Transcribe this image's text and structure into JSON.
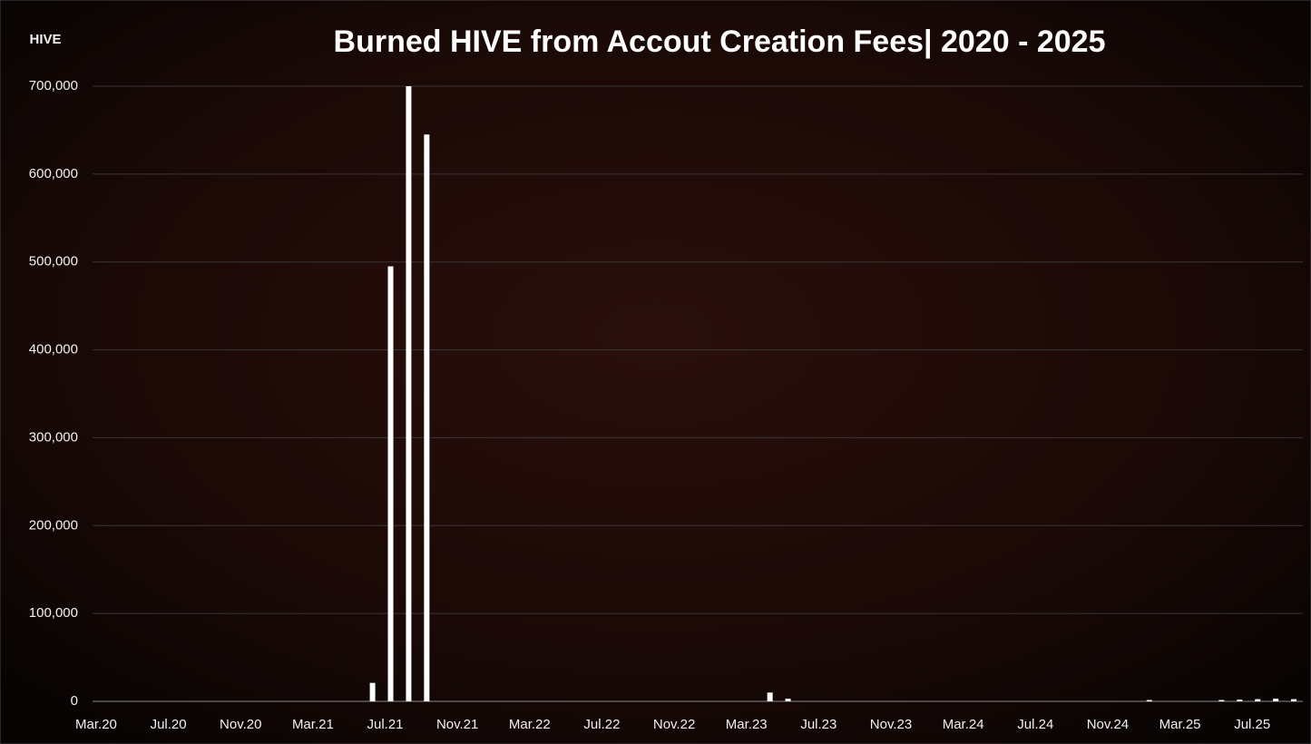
{
  "chart_data": {
    "type": "bar",
    "title": "Burned HIVE from Accout Creation Fees|  2020 - 2025",
    "y_label": "HIVE",
    "categories": [
      "Mar.20",
      null,
      null,
      null,
      "Jul.20",
      null,
      null,
      null,
      "Nov.20",
      null,
      null,
      null,
      "Mar.21",
      null,
      null,
      null,
      "Jul.21",
      null,
      null,
      null,
      "Nov.21",
      null,
      null,
      null,
      "Mar.22",
      null,
      null,
      null,
      "Jul.22",
      null,
      null,
      null,
      "Nov.22",
      null,
      null,
      null,
      "Mar.23",
      null,
      null,
      null,
      "Jul.23",
      null,
      null,
      null,
      "Nov.23",
      null,
      null,
      null,
      "Mar.24",
      null,
      null,
      null,
      "Jul.24",
      null,
      null,
      null,
      "Nov.24",
      null,
      null,
      null,
      "Mar.25",
      null,
      null,
      null,
      "Jul.25",
      null,
      null
    ],
    "values": [
      0,
      0,
      0,
      0,
      0,
      0,
      0,
      0,
      0,
      0,
      0,
      0,
      0,
      0,
      0,
      21000,
      495000,
      700000,
      645000,
      0,
      0,
      0,
      0,
      0,
      0,
      0,
      0,
      0,
      0,
      0,
      0,
      0,
      0,
      0,
      0,
      0,
      0,
      10000,
      3000,
      0,
      0,
      0,
      0,
      0,
      0,
      0,
      0,
      0,
      0,
      0,
      0,
      0,
      0,
      0,
      0,
      0,
      0,
      0,
      1500,
      0,
      0,
      0,
      1500,
      2000,
      2500,
      3000,
      2500
    ],
    "color": "#ffffff",
    "ylim": [
      0,
      700000
    ],
    "yticks": [
      0,
      {
        "value": 100000,
        "label": "100,000"
      },
      {
        "value": 200000,
        "label": "200,000"
      },
      {
        "value": 300000,
        "label": "300,000"
      },
      {
        "value": 400000,
        "label": "400,000"
      },
      {
        "value": 500000,
        "label": "500,000"
      },
      {
        "value": 600000,
        "label": "600,000"
      },
      {
        "value": 700000,
        "label": "700,000"
      }
    ],
    "grid": true
  }
}
